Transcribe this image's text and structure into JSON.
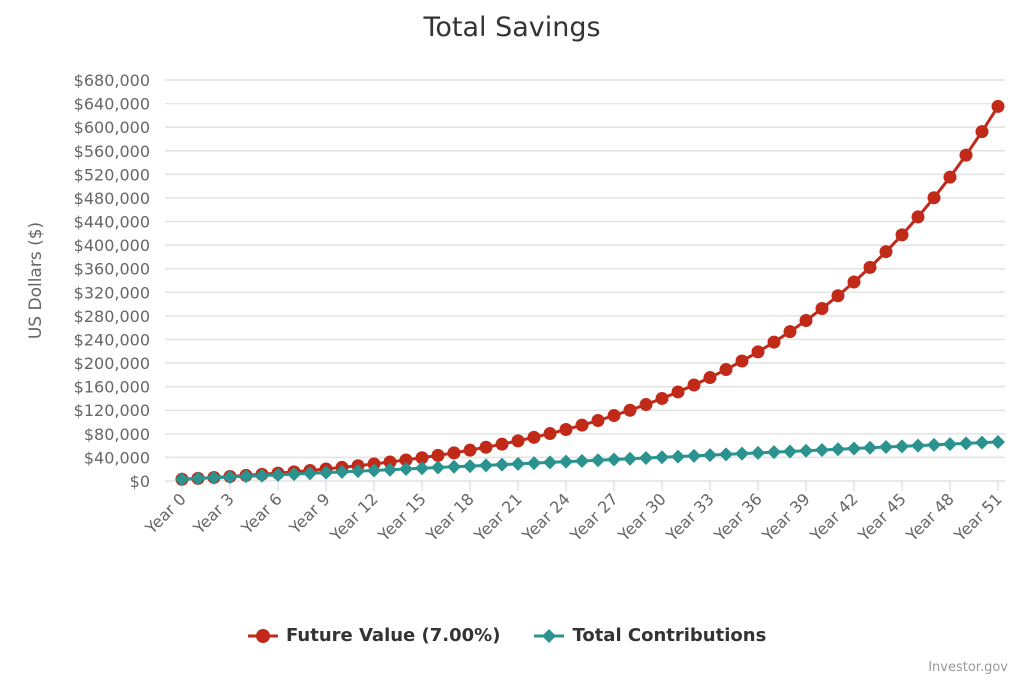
{
  "chart_data": {
    "type": "line",
    "title": "Total Savings",
    "ylabel": "US Dollars ($)",
    "xlabel": "",
    "ylim": [
      0,
      680000
    ],
    "ytick_step": 40000,
    "grid": true,
    "legend": "bottom",
    "categories": [
      "Year 0",
      "Year 1",
      "Year 2",
      "Year 3",
      "Year 4",
      "Year 5",
      "Year 6",
      "Year 7",
      "Year 8",
      "Year 9",
      "Year 10",
      "Year 11",
      "Year 12",
      "Year 13",
      "Year 14",
      "Year 15",
      "Year 16",
      "Year 17",
      "Year 18",
      "Year 19",
      "Year 20",
      "Year 21",
      "Year 22",
      "Year 23",
      "Year 24",
      "Year 25",
      "Year 26",
      "Year 27",
      "Year 28",
      "Year 29",
      "Year 30",
      "Year 31",
      "Year 32",
      "Year 33",
      "Year 34",
      "Year 35",
      "Year 36",
      "Year 37",
      "Year 38",
      "Year 39",
      "Year 40",
      "Year 41",
      "Year 42",
      "Year 43",
      "Year 44",
      "Year 45",
      "Year 46",
      "Year 47",
      "Year 48",
      "Year 49",
      "Year 50",
      "Year 51"
    ],
    "xtick_every": 3,
    "series": [
      {
        "name": "Future Value (7.00%)",
        "color": "#c12a19",
        "marker": "circle",
        "values": [
          3000,
          4450,
          6002,
          7662,
          9438,
          11339,
          13372,
          15548,
          17877,
          20368,
          23034,
          25886,
          28938,
          32204,
          35698,
          39437,
          43438,
          47719,
          52299,
          57200,
          62444,
          68055,
          74059,
          80483,
          87357,
          94712,
          102581,
          111002,
          120012,
          129653,
          139969,
          151007,
          162817,
          175454,
          188976,
          203444,
          218925,
          235490,
          253215,
          272180,
          292472,
          314185,
          337418,
          362277,
          388877,
          417338,
          447792,
          480377,
          515244,
          552551,
          592469,
          635182
        ]
      },
      {
        "name": "Total Contributions",
        "color": "#2a938f",
        "marker": "diamond",
        "values": [
          3000,
          4240,
          5480,
          6720,
          7960,
          9200,
          10440,
          11680,
          12920,
          14160,
          15400,
          16640,
          17880,
          19120,
          20360,
          21600,
          22840,
          24080,
          25320,
          26560,
          27800,
          29040,
          30280,
          31520,
          32760,
          34000,
          35240,
          36480,
          37720,
          38960,
          40200,
          41440,
          42680,
          43920,
          45160,
          46400,
          47640,
          48880,
          50120,
          51360,
          52600,
          53840,
          55080,
          56320,
          57560,
          58800,
          60040,
          61280,
          62520,
          63760,
          65000,
          66240
        ]
      }
    ]
  },
  "credit": "Investor.gov"
}
